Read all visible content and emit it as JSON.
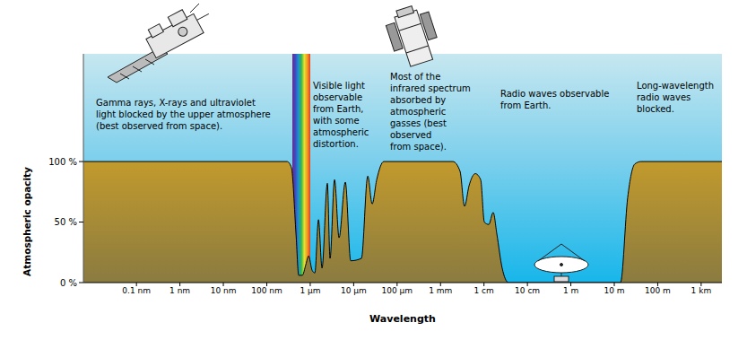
{
  "chart_data": {
    "type": "area",
    "x_label": "Wavelength",
    "y_label": "Atmospheric opacity",
    "log": "x",
    "grid": false,
    "color": "#c29a2d",
    "xlim": [
      6e-12,
      3000
    ],
    "ylim": [
      0,
      189
    ],
    "xticks": [
      {
        "value": 1e-10,
        "label": "0.1 nm"
      },
      {
        "value": 1e-09,
        "label": "1 nm"
      },
      {
        "value": 1e-08,
        "label": "10 nm"
      },
      {
        "value": 1e-07,
        "label": "100 nm"
      },
      {
        "value": 1e-06,
        "label": "1 µm"
      },
      {
        "value": 1e-05,
        "label": "10 µm"
      },
      {
        "value": 0.0001,
        "label": "100 µm"
      },
      {
        "value": 0.001,
        "label": "1 mm"
      },
      {
        "value": 0.01,
        "label": "1 cm"
      },
      {
        "value": 0.1,
        "label": "10 cm"
      },
      {
        "value": 1,
        "label": "1 m"
      },
      {
        "value": 10,
        "label": "10 m"
      },
      {
        "value": 100,
        "label": "100 m"
      },
      {
        "value": 1000,
        "label": "1 km"
      }
    ],
    "yticks": [
      {
        "value": 0,
        "label": "0 %"
      },
      {
        "value": 50,
        "label": "50 %"
      },
      {
        "value": 100,
        "label": "100 %"
      }
    ],
    "x": [
      6e-12,
      2.93e-07,
      3.69e-07,
      4.71e-07,
      5.43e-07,
      6.58e-07,
      7.94e-07,
      9.16e-07,
      1.11e-06,
      1.28e-06,
      1.55e-06,
      1.87e-06,
      2.48e-06,
      2.86e-06,
      3.63e-06,
      4.61e-06,
      6.43e-06,
      8.55e-06,
      1.51e-05,
      2.11e-05,
      2.67e-05,
      3.39e-05,
      4.95e-05,
      0.00192,
      0.00281,
      0.00357,
      0.00453,
      0.00631,
      0.00839,
      0.0102,
      0.0129,
      0.0163,
      0.0198,
      0.0262,
      0.0366,
      13.9,
      20.3,
      29.7,
      41.4,
      3000
    ],
    "values": [
      100,
      100,
      95,
      40,
      6,
      6,
      15,
      22,
      10,
      8,
      52,
      12,
      82,
      20,
      85,
      37,
      83,
      18,
      20,
      88,
      65,
      85,
      100,
      100,
      92,
      63,
      80,
      90,
      85,
      50,
      48,
      58,
      40,
      12,
      0,
      0,
      70,
      98,
      100,
      100
    ],
    "annotations": [
      {
        "lines": [
          "Gamma rays, X-rays and ultraviolet",
          "light blocked by the upper atmosphere",
          "(best observed from space)."
        ]
      },
      {
        "lines": [
          "Visible light",
          "observable",
          "from Earth,",
          "with some",
          "atmospheric",
          "distortion."
        ]
      },
      {
        "lines": [
          "Most of the",
          "infrared spectrum",
          "absorbed by",
          "atmospheric",
          "gasses (best",
          "observed",
          "from space)."
        ]
      },
      {
        "lines": [
          "Radio waves observable",
          "from Earth."
        ]
      },
      {
        "lines": [
          "Long-wavelength",
          "radio waves",
          "blocked."
        ]
      }
    ]
  }
}
